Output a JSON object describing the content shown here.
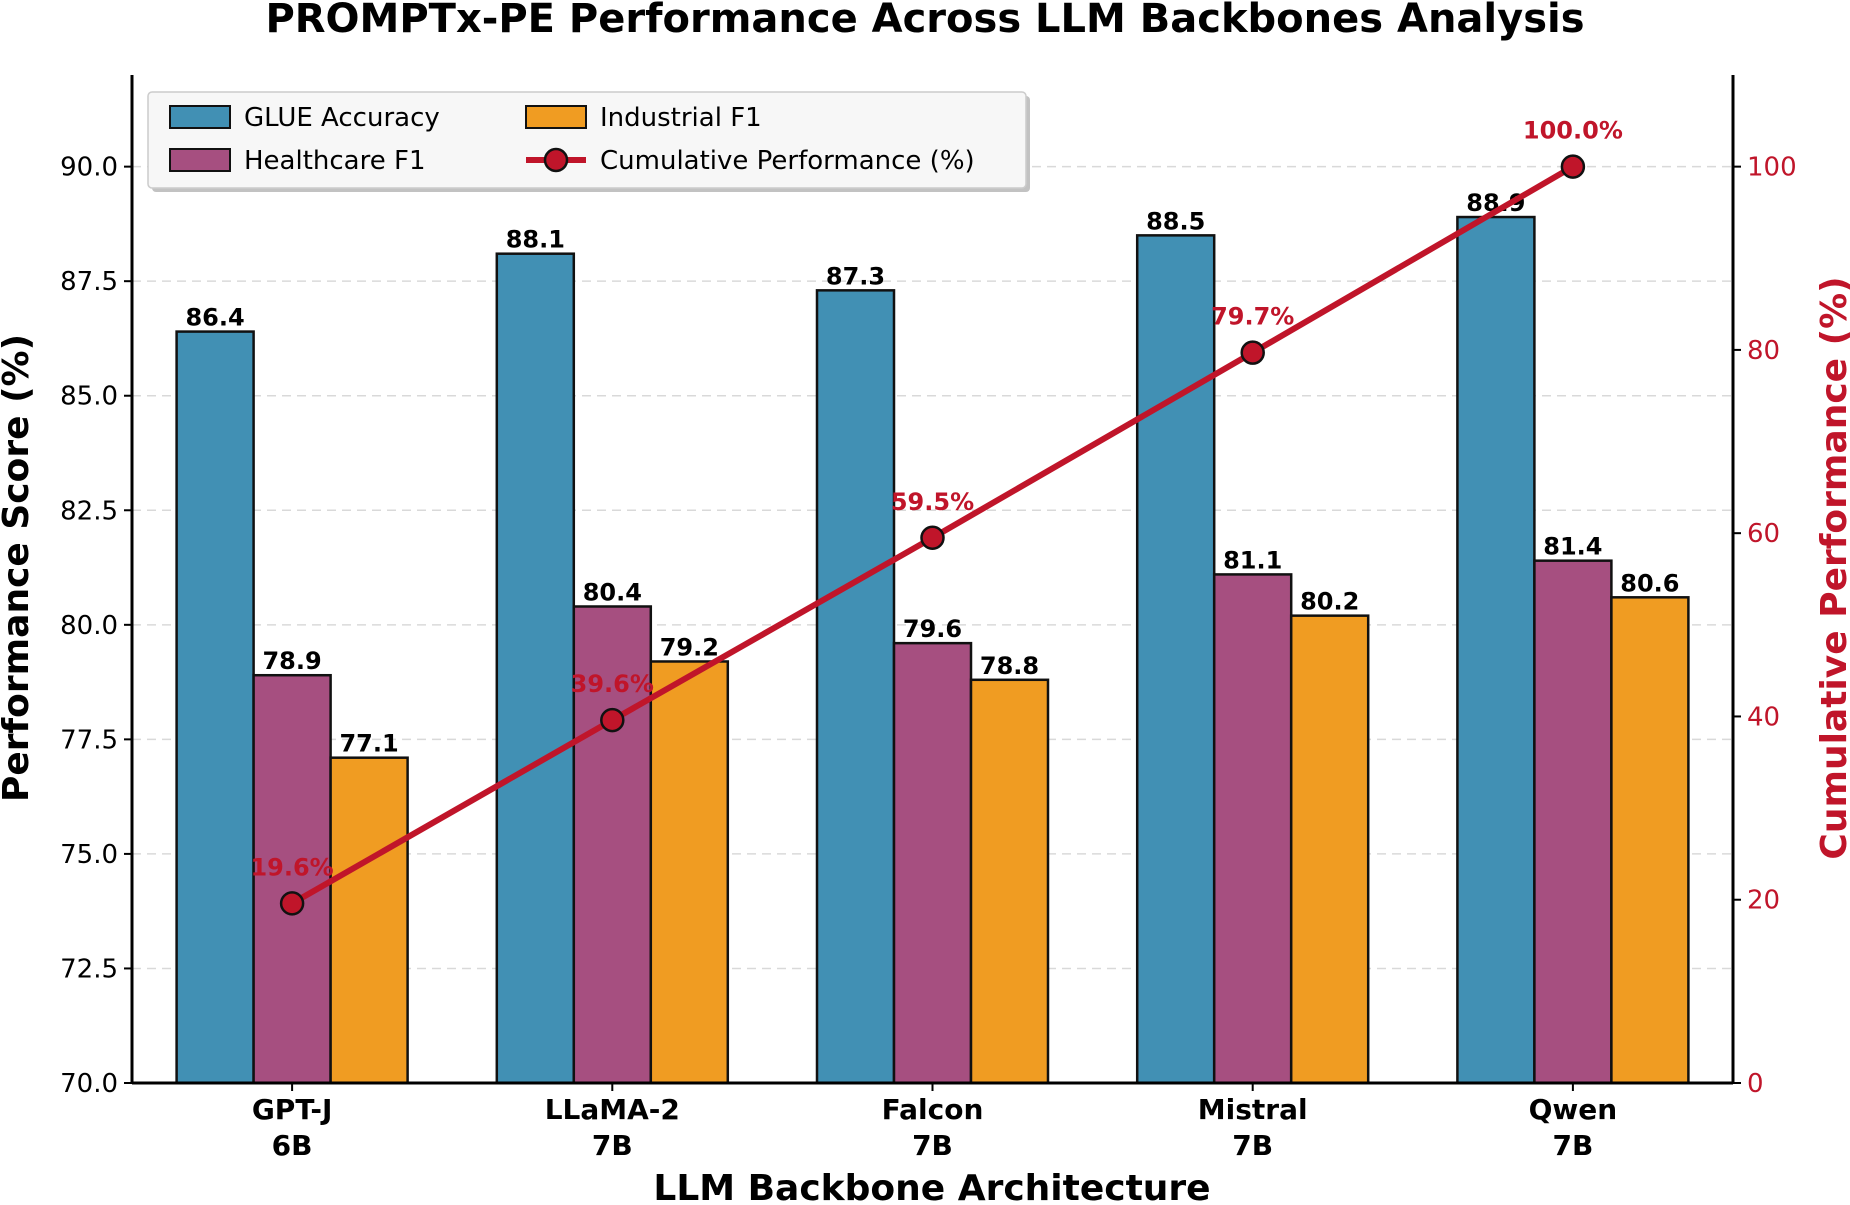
{
  "chart_data": {
    "type": "bar",
    "title": "PROMPTx-PE Performance Across LLM Backbones Analysis",
    "xlabel": "LLM Backbone Architecture",
    "ylabel": "Performance Score (%)",
    "y2label": "Cumulative Performance (%)",
    "ylim": [
      70,
      92
    ],
    "y2lim": [
      0,
      110
    ],
    "yticks": [
      "70.0",
      "72.5",
      "75.0",
      "77.5",
      "80.0",
      "82.5",
      "85.0",
      "87.5",
      "90.0"
    ],
    "y2ticks": [
      "0",
      "20",
      "40",
      "60",
      "80",
      "100"
    ],
    "grid": true,
    "legend_position": "top-left",
    "categories": [
      [
        "GPT-J",
        "6B"
      ],
      [
        "LLaMA-2",
        "7B"
      ],
      [
        "Falcon",
        "7B"
      ],
      [
        "Mistral",
        "7B"
      ],
      [
        "Qwen",
        "7B"
      ]
    ],
    "series": [
      {
        "name": "GLUE Accuracy",
        "color": "#4190b4",
        "values": [
          86.4,
          88.1,
          87.3,
          88.5,
          88.9
        ],
        "labels": [
          "86.4",
          "88.1",
          "87.3",
          "88.5",
          "88.9"
        ]
      },
      {
        "name": "Healthcare F1",
        "color": "#a64f80",
        "values": [
          78.9,
          80.4,
          79.6,
          81.1,
          81.4
        ],
        "labels": [
          "78.9",
          "80.4",
          "79.6",
          "81.1",
          "81.4"
        ]
      },
      {
        "name": "Industrial F1",
        "color": "#f09c22",
        "values": [
          77.1,
          79.2,
          78.8,
          80.2,
          80.6
        ],
        "labels": [
          "77.1",
          "79.2",
          "78.8",
          "80.2",
          "80.6"
        ]
      }
    ],
    "line_series": {
      "name": "Cumulative Performance (%)",
      "color": "#c0152a",
      "axis": "right",
      "values": [
        19.6,
        39.6,
        59.5,
        79.7,
        100.0
      ],
      "labels": [
        "19.6%",
        "39.6%",
        "59.5%",
        "79.7%",
        "100.0%"
      ]
    }
  }
}
